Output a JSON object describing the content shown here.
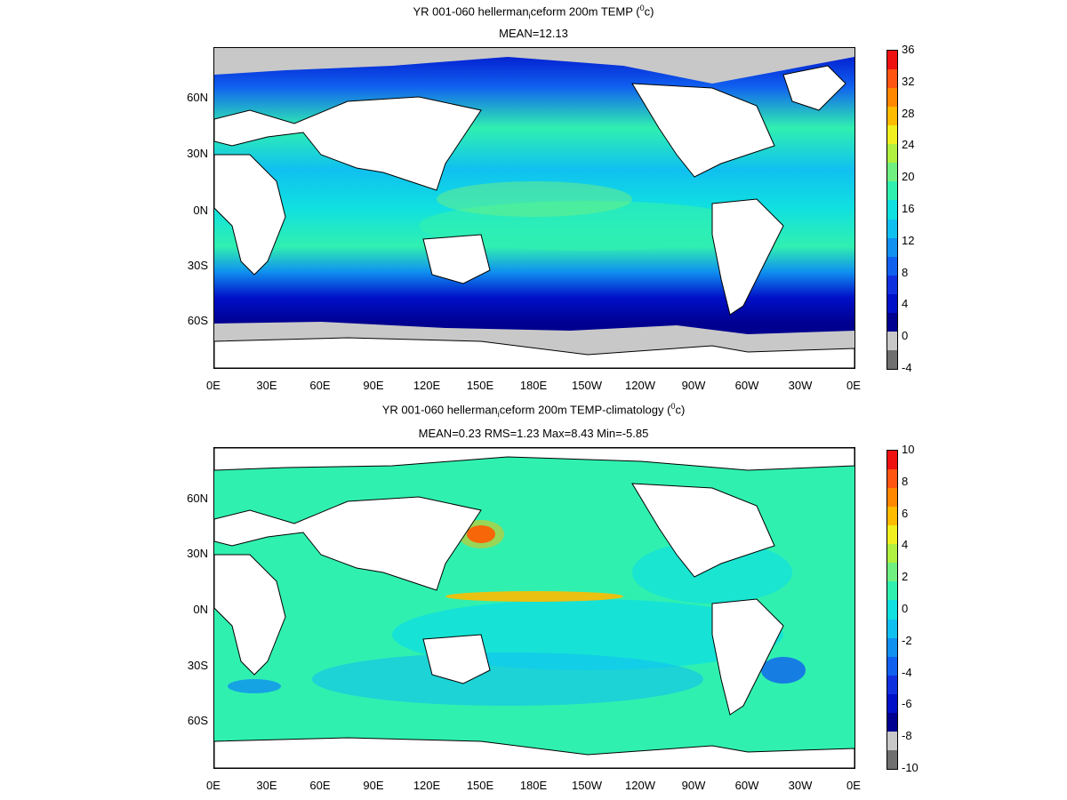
{
  "top": {
    "title": "YR 001-060 hellerman",
    "title_sub": "i",
    "title_rest": "ceform 200m TEMP (",
    "title_sup": "0",
    "title_end": "c)",
    "subtitle": "MEAN=12.13",
    "colorbar_labels": [
      "36",
      "32",
      "28",
      "24",
      "20",
      "16",
      "12",
      "8",
      "4",
      "0",
      "-4"
    ],
    "colors": [
      "#ee1111",
      "#ff5511",
      "#ff8800",
      "#ffbb00",
      "#f0f020",
      "#b0f040",
      "#70f080",
      "#30f0b0",
      "#10e0e0",
      "#10c0f0",
      "#1090f0",
      "#1060f0",
      "#1030e0",
      "#0010c8",
      "#000090",
      "#c8c8c8",
      "#707070"
    ]
  },
  "bottom": {
    "title": "YR 001-060 hellerman",
    "title_sub": "i",
    "title_rest": "ceform 200m TEMP-climatology (",
    "title_sup": "0",
    "title_end": "c)",
    "subtitle": "MEAN=0.23   RMS=1.23   Max=8.43   Min=-5.85",
    "colorbar_labels": [
      "10",
      "8",
      "6",
      "4",
      "2",
      "0",
      "-2",
      "-4",
      "-6",
      "-8",
      "-10"
    ],
    "colors": [
      "#ee1111",
      "#ff5511",
      "#ff8800",
      "#ffbb00",
      "#f0f020",
      "#b0f040",
      "#70f080",
      "#30f0b0",
      "#10e0e0",
      "#10c0f0",
      "#1090f0",
      "#1060f0",
      "#1030e0",
      "#0010c8",
      "#000090",
      "#c8c8c8",
      "#707070"
    ]
  },
  "x_ticks": [
    "0E",
    "30E",
    "60E",
    "90E",
    "120E",
    "150E",
    "180E",
    "150W",
    "120W",
    "90W",
    "60W",
    "30W",
    "0E"
  ],
  "y_ticks": [
    "60N",
    "30N",
    "0N",
    "30S",
    "60S"
  ],
  "colors": {
    "land": "#ffffff",
    "ice": "#c8c8c8",
    "frame": "#000000"
  }
}
